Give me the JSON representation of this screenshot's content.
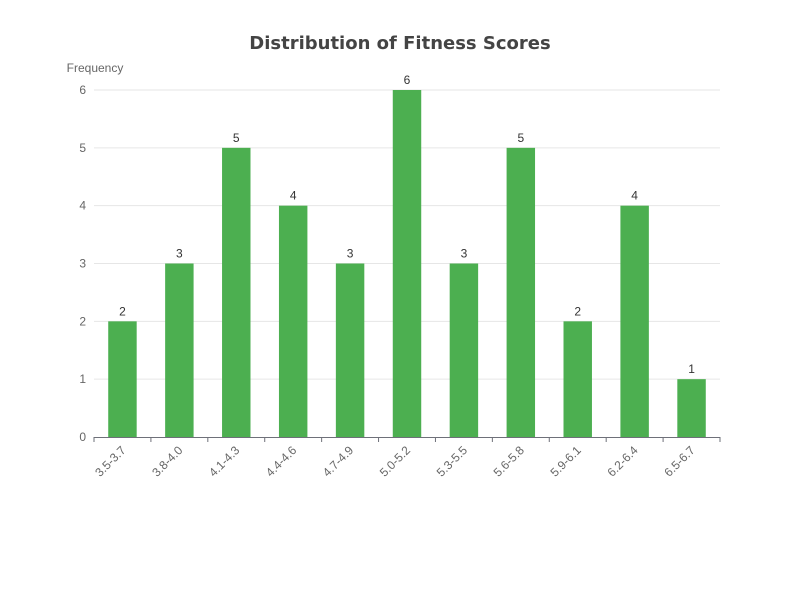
{
  "chart_data": {
    "type": "bar",
    "title": "Distribution of Fitness Scores",
    "ylabel": "Frequency",
    "xlabel": "",
    "categories": [
      "3.5-3.7",
      "3.8-4.0",
      "4.1-4.3",
      "4.4-4.6",
      "4.7-4.9",
      "5.0-5.2",
      "5.3-5.5",
      "5.6-5.8",
      "5.9-6.1",
      "6.2-6.4",
      "6.5-6.7"
    ],
    "values": [
      2,
      3,
      5,
      4,
      3,
      6,
      3,
      5,
      2,
      4,
      1
    ],
    "ylim": [
      0,
      6
    ],
    "yticks": [
      0,
      1,
      2,
      3,
      4,
      5,
      6
    ],
    "grid": true,
    "bar_color": "#4caf50",
    "data_labels": true
  }
}
